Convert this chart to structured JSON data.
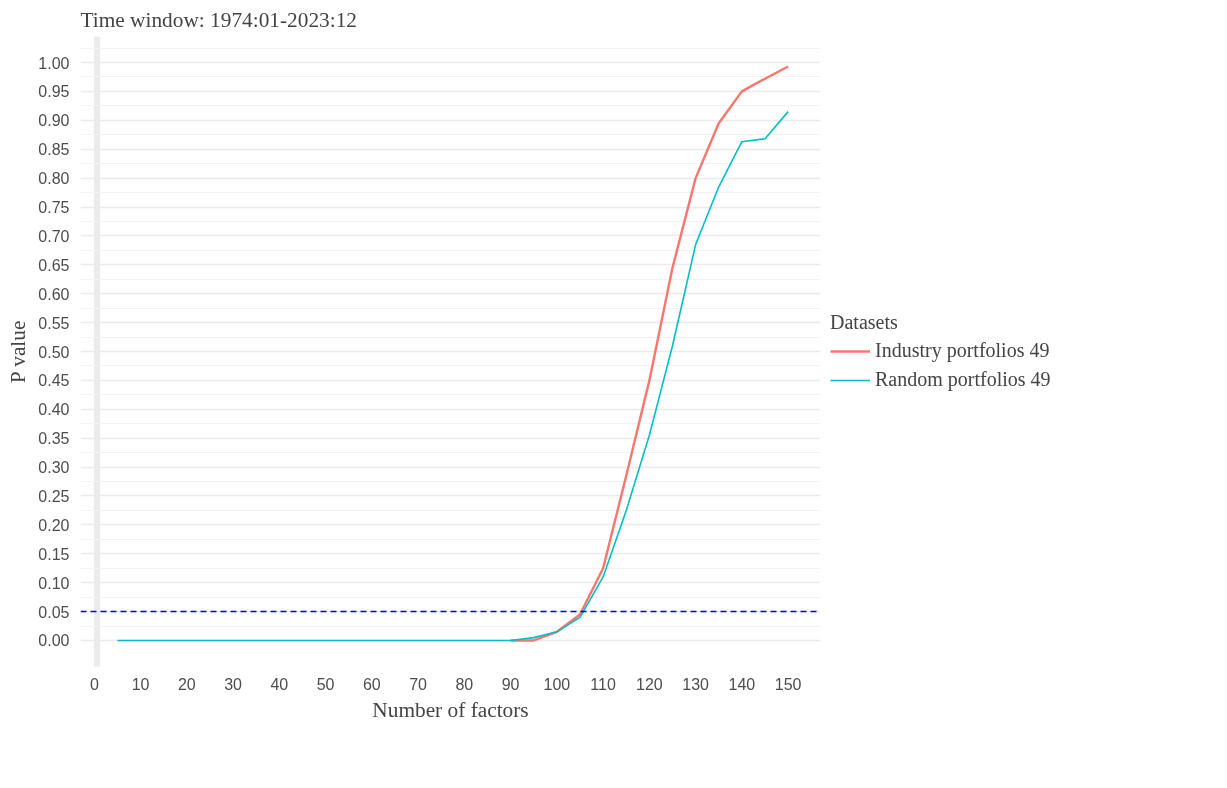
{
  "chart_data": {
    "type": "line",
    "title": "Time window: 1974:01-2023:12",
    "xlabel": "Number of factors",
    "ylabel": "P value",
    "legend_title": "Datasets",
    "x": [
      5,
      10,
      15,
      20,
      25,
      30,
      35,
      40,
      45,
      50,
      55,
      60,
      65,
      70,
      75,
      80,
      85,
      90,
      95,
      100,
      105,
      110,
      115,
      120,
      125,
      130,
      135,
      140,
      145,
      150
    ],
    "series": [
      {
        "name": "Industry portfolios 49",
        "color": "#f8766d",
        "values": [
          null,
          null,
          null,
          null,
          null,
          null,
          null,
          null,
          null,
          null,
          null,
          null,
          null,
          null,
          null,
          null,
          null,
          0,
          0.0,
          0.015,
          0.045,
          0.125,
          0.285,
          0.45,
          0.645,
          0.8,
          0.895,
          0.95,
          0.972,
          0.993
        ]
      },
      {
        "name": "Random portfolios 49",
        "color": "#00bfc4",
        "values": [
          0,
          0,
          0,
          0,
          0,
          0,
          0,
          0,
          0,
          0,
          0,
          0,
          0,
          0,
          0,
          0,
          0,
          0,
          0.005,
          0.015,
          0.04,
          0.11,
          0.225,
          0.355,
          0.51,
          0.685,
          0.785,
          0.863,
          0.868,
          0.915
        ]
      }
    ],
    "xlim": [
      -3,
      157
    ],
    "ylim": [
      -0.045,
      1.045
    ],
    "xticks": [
      0,
      10,
      20,
      30,
      40,
      50,
      60,
      70,
      80,
      90,
      100,
      110,
      120,
      130,
      140,
      150
    ],
    "yticks": [
      {
        "value": 0,
        "label": "0.00"
      },
      {
        "value": 0.05,
        "label": "0.05"
      },
      {
        "value": 0.1,
        "label": "0.10"
      },
      {
        "value": 0.15,
        "label": "0.15"
      },
      {
        "value": 0.2,
        "label": "0.20"
      },
      {
        "value": 0.25,
        "label": "0.25"
      },
      {
        "value": 0.3,
        "label": "0.30"
      },
      {
        "value": 0.35,
        "label": "0.35"
      },
      {
        "value": 0.4,
        "label": "0.40"
      },
      {
        "value": 0.45,
        "label": "0.45"
      },
      {
        "value": 0.5,
        "label": "0.50"
      },
      {
        "value": 0.55,
        "label": "0.55"
      },
      {
        "value": 0.6,
        "label": "0.60"
      },
      {
        "value": 0.65,
        "label": "0.65"
      },
      {
        "value": 0.7,
        "label": "0.70"
      },
      {
        "value": 0.75,
        "label": "0.75"
      },
      {
        "value": 0.8,
        "label": "0.80"
      },
      {
        "value": 0.85,
        "label": "0.85"
      },
      {
        "value": 0.9,
        "label": "0.90"
      },
      {
        "value": 0.95,
        "label": "0.95"
      },
      {
        "value": 1,
        "label": "1.00"
      }
    ],
    "ref_lines": [
      {
        "axis": "y",
        "value": 0.05,
        "color": "#0000ff",
        "line_style": "dashed"
      }
    ],
    "grid": true,
    "legend": "right",
    "marker": "none",
    "line_style": "solid"
  }
}
